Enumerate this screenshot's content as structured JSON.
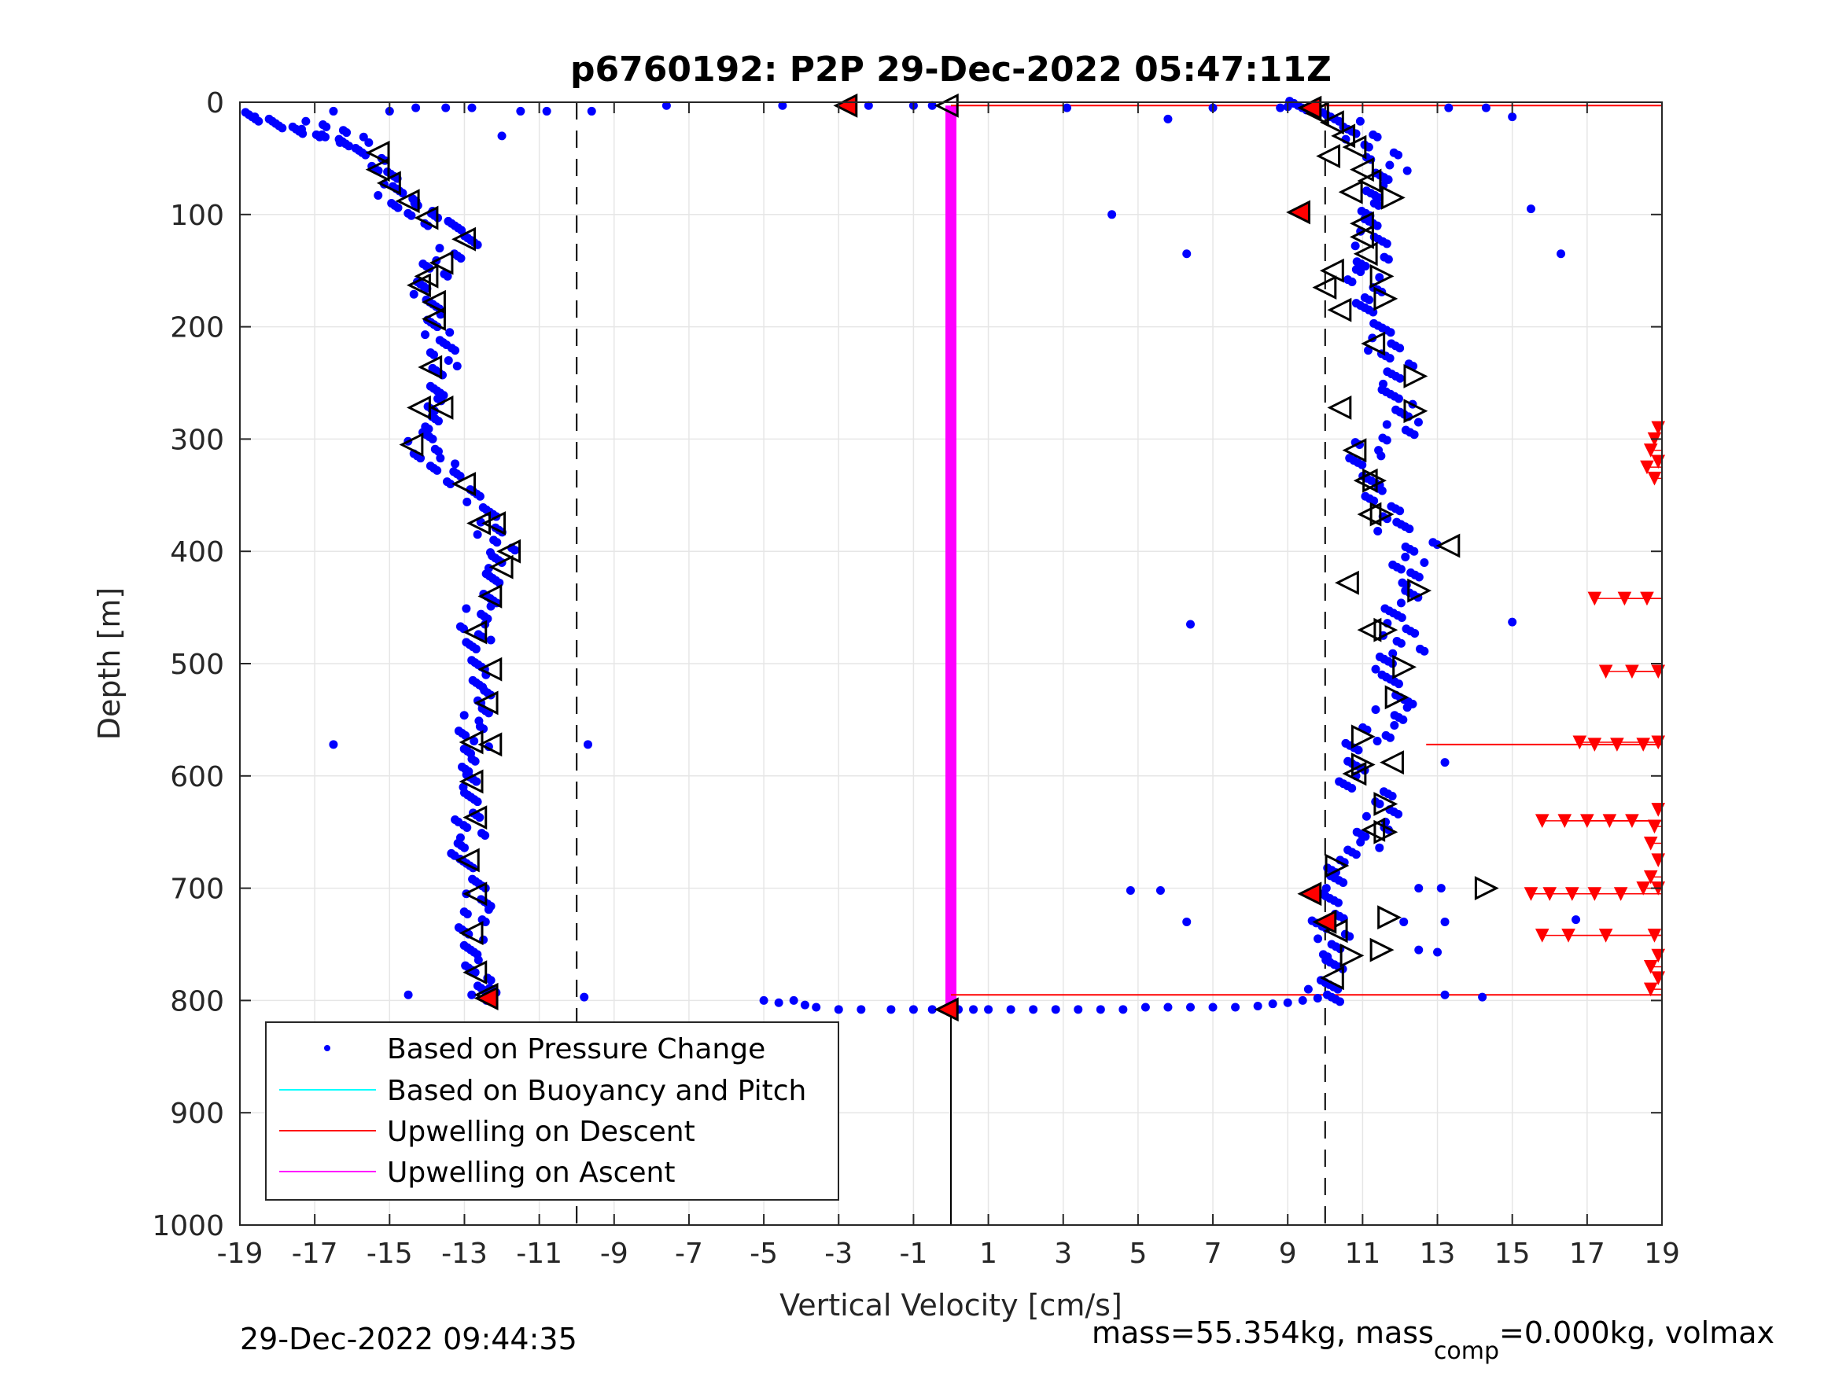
{
  "chart_data": {
    "type": "scatter",
    "title": "p6760192: P2P 29-Dec-2022 05:47:11Z",
    "xlabel": "Vertical Velocity [cm/s]",
    "ylabel": "Depth [m]",
    "xlim": [
      -19,
      19
    ],
    "ylim": [
      0,
      1000
    ],
    "y_reversed": true,
    "grid": true,
    "xticks": [
      "-19",
      "-17",
      "-15",
      "-13",
      "-11",
      "-9",
      "-7",
      "-5",
      "-3",
      "-1",
      "1",
      "3",
      "5",
      "7",
      "9",
      "11",
      "13",
      "15",
      "17",
      "19"
    ],
    "yticks": [
      "0",
      "100",
      "200",
      "300",
      "400",
      "500",
      "600",
      "700",
      "800",
      "900",
      "1000"
    ],
    "legend_position": "bottom-left",
    "legend": [
      {
        "label": "Based on Pressure Change",
        "color": "#0000ff",
        "style": "dot"
      },
      {
        "label": "Based on Buoyancy and Pitch",
        "color": "#00ffff",
        "style": "line"
      },
      {
        "label": "Upwelling on Descent",
        "color": "#ff0000",
        "style": "line"
      },
      {
        "label": "Upwelling on Ascent",
        "color": "#ff00ff",
        "style": "line"
      }
    ],
    "reference_lines": {
      "dashed_x": [
        -10,
        10
      ],
      "solid_x_from_depth_800": 0
    },
    "descent_profile": {
      "color": "#0000ff",
      "points": [
        [
          -18.5,
          15
        ],
        [
          -18.0,
          18
        ],
        [
          -17.5,
          22
        ],
        [
          -17.0,
          26
        ],
        [
          -16.5,
          30
        ],
        [
          -16.0,
          35
        ],
        [
          -15.6,
          42
        ],
        [
          -15.3,
          55
        ],
        [
          -15.1,
          68
        ],
        [
          -15.0,
          80
        ],
        [
          -14.6,
          88
        ],
        [
          -14.2,
          96
        ],
        [
          -13.8,
          104
        ],
        [
          -13.3,
          112
        ],
        [
          -13.0,
          122
        ],
        [
          -13.4,
          135
        ],
        [
          -13.8,
          150
        ],
        [
          -14.0,
          165
        ],
        [
          -13.8,
          180
        ],
        [
          -13.9,
          195
        ],
        [
          -13.7,
          210
        ],
        [
          -13.6,
          225
        ],
        [
          -13.5,
          240
        ],
        [
          -13.6,
          255
        ],
        [
          -13.8,
          270
        ],
        [
          -14.0,
          285
        ],
        [
          -14.2,
          300
        ],
        [
          -14.0,
          312
        ],
        [
          -13.6,
          322
        ],
        [
          -13.2,
          335
        ],
        [
          -12.8,
          350
        ],
        [
          -12.5,
          365
        ],
        [
          -12.3,
          380
        ],
        [
          -12.0,
          395
        ],
        [
          -12.0,
          410
        ],
        [
          -12.2,
          425
        ],
        [
          -12.4,
          440
        ],
        [
          -12.6,
          455
        ],
        [
          -12.8,
          470
        ],
        [
          -12.6,
          485
        ],
        [
          -12.5,
          500
        ],
        [
          -12.6,
          515
        ],
        [
          -12.6,
          530
        ],
        [
          -12.7,
          545
        ],
        [
          -12.8,
          560
        ],
        [
          -12.7,
          575
        ],
        [
          -12.8,
          590
        ],
        [
          -12.9,
          605
        ],
        [
          -13.0,
          620
        ],
        [
          -12.9,
          635
        ],
        [
          -12.8,
          650
        ],
        [
          -13.0,
          665
        ],
        [
          -12.9,
          680
        ],
        [
          -12.7,
          695
        ],
        [
          -12.6,
          710
        ],
        [
          -12.7,
          725
        ],
        [
          -12.8,
          740
        ],
        [
          -12.7,
          755
        ],
        [
          -12.8,
          770
        ],
        [
          -12.6,
          785
        ],
        [
          -12.5,
          795
        ]
      ],
      "outliers": [
        [
          -16.5,
          572
        ],
        [
          -9.7,
          572
        ],
        [
          -14.5,
          795
        ],
        [
          -9.8,
          797
        ],
        [
          -12.0,
          30
        ],
        [
          -11.5,
          8
        ],
        [
          -10.8,
          8
        ],
        [
          -9.6,
          8
        ],
        [
          -13.5,
          5
        ],
        [
          -14.3,
          5
        ]
      ]
    },
    "ascent_profile": {
      "color": "#0000ff",
      "points": [
        [
          9.5,
          5
        ],
        [
          10.2,
          12
        ],
        [
          10.6,
          22
        ],
        [
          11.0,
          35
        ],
        [
          11.5,
          50
        ],
        [
          11.8,
          65
        ],
        [
          11.5,
          80
        ],
        [
          11.2,
          95
        ],
        [
          11.0,
          110
        ],
        [
          11.2,
          125
        ],
        [
          11.3,
          140
        ],
        [
          11.0,
          155
        ],
        [
          11.4,
          170
        ],
        [
          11.0,
          185
        ],
        [
          11.3,
          200
        ],
        [
          11.6,
          215
        ],
        [
          11.9,
          230
        ],
        [
          12.0,
          245
        ],
        [
          11.8,
          260
        ],
        [
          12.0,
          275
        ],
        [
          12.1,
          290
        ],
        [
          11.2,
          305
        ],
        [
          11.1,
          320
        ],
        [
          11.4,
          335
        ],
        [
          11.3,
          350
        ],
        [
          11.6,
          365
        ],
        [
          11.8,
          380
        ],
        [
          12.6,
          395
        ],
        [
          12.2,
          410
        ],
        [
          12.4,
          425
        ],
        [
          12.2,
          440
        ],
        [
          11.6,
          455
        ],
        [
          12.0,
          470
        ],
        [
          12.2,
          485
        ],
        [
          11.8,
          500
        ],
        [
          11.8,
          515
        ],
        [
          12.0,
          530
        ],
        [
          11.8,
          545
        ],
        [
          11.4,
          560
        ],
        [
          11.0,
          575
        ],
        [
          11.0,
          590
        ],
        [
          10.6,
          605
        ],
        [
          11.4,
          620
        ],
        [
          11.5,
          635
        ],
        [
          11.3,
          650
        ],
        [
          11.0,
          665
        ],
        [
          10.4,
          680
        ],
        [
          10.2,
          695
        ],
        [
          9.9,
          710
        ],
        [
          10.1,
          725
        ],
        [
          10.2,
          740
        ],
        [
          10.4,
          755
        ],
        [
          10.3,
          770
        ],
        [
          10.0,
          785
        ],
        [
          10.0,
          795
        ]
      ],
      "outliers": [
        [
          4.3,
          100
        ],
        [
          6.3,
          135
        ],
        [
          15.5,
          95
        ],
        [
          16.3,
          135
        ],
        [
          5.8,
          15
        ],
        [
          3.1,
          5
        ],
        [
          6.4,
          465
        ],
        [
          15.0,
          463
        ],
        [
          13.2,
          588
        ],
        [
          4.8,
          702
        ],
        [
          5.6,
          702
        ],
        [
          6.3,
          730
        ],
        [
          16.7,
          728
        ],
        [
          13.2,
          795
        ],
        [
          14.2,
          797
        ],
        [
          12.5,
          755
        ],
        [
          13.0,
          757
        ],
        [
          12.1,
          730
        ],
        [
          13.2,
          730
        ],
        [
          12.5,
          700
        ],
        [
          13.1,
          700
        ],
        [
          14.3,
          5
        ],
        [
          15.0,
          13
        ],
        [
          13.3,
          5
        ],
        [
          7.0,
          5
        ]
      ]
    },
    "surface_points": [
      [
        -18.6,
        13
      ],
      [
        -16.5,
        8
      ],
      [
        -15.0,
        8
      ],
      [
        -12.8,
        5
      ],
      [
        -7.6,
        3
      ],
      [
        -4.5,
        3
      ],
      [
        -2.2,
        3
      ],
      [
        -1.0,
        3
      ],
      [
        -0.5,
        3
      ],
      [
        8.8,
        5
      ],
      [
        9.0,
        4
      ]
    ],
    "bottom_points": [
      [
        -5.0,
        800
      ],
      [
        -4.6,
        802
      ],
      [
        -4.2,
        800
      ],
      [
        -3.9,
        804
      ],
      [
        -3.6,
        806
      ],
      [
        -3.0,
        808
      ],
      [
        -2.4,
        808
      ],
      [
        -1.6,
        808
      ],
      [
        -1.0,
        808
      ],
      [
        -0.5,
        808
      ],
      [
        0.2,
        808
      ],
      [
        0.6,
        808
      ],
      [
        1.0,
        808
      ],
      [
        1.6,
        808
      ],
      [
        2.2,
        808
      ],
      [
        2.8,
        808
      ],
      [
        3.4,
        808
      ],
      [
        4.0,
        808
      ],
      [
        4.6,
        808
      ],
      [
        5.2,
        806
      ],
      [
        5.8,
        806
      ],
      [
        6.4,
        806
      ],
      [
        7.0,
        806
      ],
      [
        7.6,
        806
      ],
      [
        8.2,
        805
      ],
      [
        8.6,
        803
      ],
      [
        9.0,
        802
      ],
      [
        9.4,
        800
      ],
      [
        9.8,
        798
      ]
    ],
    "triangles_left_descent": [
      [
        -15.3,
        45
      ],
      [
        -15.3,
        60
      ],
      [
        -15.0,
        72
      ],
      [
        -14.5,
        88
      ],
      [
        -14.0,
        103
      ],
      [
        -13.0,
        122
      ],
      [
        -13.6,
        143
      ],
      [
        -14.0,
        155
      ],
      [
        -14.2,
        163
      ],
      [
        -13.8,
        178
      ],
      [
        -13.8,
        193
      ],
      [
        -13.9,
        236
      ],
      [
        -14.2,
        272
      ],
      [
        -13.6,
        272
      ],
      [
        -14.4,
        305
      ],
      [
        -13.0,
        340
      ],
      [
        -12.6,
        375
      ],
      [
        -12.2,
        375
      ],
      [
        -11.8,
        400
      ],
      [
        -12.0,
        414
      ],
      [
        -12.3,
        440
      ],
      [
        -12.7,
        472
      ],
      [
        -12.3,
        505
      ],
      [
        -12.4,
        535
      ],
      [
        -12.8,
        570
      ],
      [
        -12.3,
        572
      ],
      [
        -12.8,
        605
      ],
      [
        -12.7,
        637
      ],
      [
        -12.9,
        675
      ],
      [
        -12.7,
        705
      ],
      [
        -12.8,
        740
      ],
      [
        -12.7,
        775
      ],
      [
        -12.4,
        795
      ],
      [
        9.8,
        10
      ],
      [
        10.2,
        18
      ],
      [
        10.5,
        30
      ],
      [
        10.8,
        40
      ],
      [
        10.1,
        48
      ],
      [
        11.0,
        60
      ],
      [
        11.2,
        70
      ],
      [
        10.7,
        80
      ],
      [
        11.0,
        108
      ],
      [
        11.0,
        120
      ],
      [
        11.1,
        135
      ],
      [
        10.2,
        150
      ],
      [
        10.0,
        165
      ],
      [
        10.4,
        185
      ],
      [
        11.3,
        215
      ],
      [
        10.4,
        272
      ],
      [
        10.8,
        310
      ],
      [
        11.1,
        337
      ],
      [
        11.2,
        367
      ],
      [
        13.3,
        395
      ],
      [
        10.6,
        428
      ],
      [
        11.2,
        470
      ],
      [
        11.8,
        588
      ],
      [
        10.8,
        598
      ],
      [
        11.3,
        648
      ],
      [
        10.3,
        738
      ],
      [
        10.2,
        780
      ],
      [
        -0.1,
        3
      ]
    ],
    "triangles_right_ascent": [
      [
        11.8,
        85
      ],
      [
        11.5,
        155
      ],
      [
        11.6,
        175
      ],
      [
        12.4,
        244
      ],
      [
        12.4,
        275
      ],
      [
        11.3,
        337
      ],
      [
        11.5,
        367
      ],
      [
        12.5,
        435
      ],
      [
        11.6,
        470
      ],
      [
        12.1,
        503
      ],
      [
        11.9,
        530
      ],
      [
        11.0,
        565
      ],
      [
        11.0,
        590
      ],
      [
        11.6,
        625
      ],
      [
        11.6,
        650
      ],
      [
        10.3,
        680
      ],
      [
        11.7,
        726
      ],
      [
        11.5,
        755
      ],
      [
        14.3,
        700
      ],
      [
        10.7,
        760
      ]
    ],
    "triangles_red_fill": [
      [
        -2.8,
        3
      ],
      [
        9.6,
        5
      ],
      [
        9.3,
        98
      ],
      [
        9.6,
        705
      ],
      [
        10.0,
        730
      ],
      [
        -12.4,
        798
      ],
      [
        -0.1,
        808
      ]
    ],
    "upwelling_descent_lines": [
      [
        0.0,
        3
      ],
      [
        0.0,
        795
      ],
      [
        12.7,
        572
      ]
    ],
    "upwelling_descent_arrows": [
      [
        18.9,
        290
      ],
      [
        18.8,
        300
      ],
      [
        18.7,
        310
      ],
      [
        18.9,
        320
      ],
      [
        18.6,
        325
      ],
      [
        18.8,
        335
      ],
      [
        17.2,
        442
      ],
      [
        18.0,
        442
      ],
      [
        18.6,
        442
      ],
      [
        17.5,
        507
      ],
      [
        18.2,
        507
      ],
      [
        18.9,
        507
      ],
      [
        16.8,
        570
      ],
      [
        17.2,
        572
      ],
      [
        17.8,
        572
      ],
      [
        18.5,
        572
      ],
      [
        18.9,
        570
      ],
      [
        15.8,
        640
      ],
      [
        16.4,
        640
      ],
      [
        17.0,
        640
      ],
      [
        17.6,
        640
      ],
      [
        18.2,
        640
      ],
      [
        18.9,
        630
      ],
      [
        18.8,
        645
      ],
      [
        18.7,
        660
      ],
      [
        18.9,
        675
      ],
      [
        18.7,
        690
      ],
      [
        18.9,
        700
      ],
      [
        15.5,
        705
      ],
      [
        16.0,
        705
      ],
      [
        16.6,
        705
      ],
      [
        17.2,
        705
      ],
      [
        17.9,
        705
      ],
      [
        18.5,
        700
      ],
      [
        15.8,
        742
      ],
      [
        16.5,
        742
      ],
      [
        17.5,
        742
      ],
      [
        18.8,
        742
      ],
      [
        18.9,
        760
      ],
      [
        18.7,
        770
      ],
      [
        18.9,
        780
      ],
      [
        18.7,
        790
      ]
    ],
    "upwelling_ascent_segment": {
      "x": 0.0,
      "depth_from": 3,
      "depth_to": 808,
      "color": "#ff00ff"
    }
  },
  "footer": {
    "timestamp": "29-Dec-2022 09:44:35",
    "mass_prefix": "mass=55.354kg, mass",
    "mass_sub": "comp",
    "mass_suffix": "=0.000kg, volmax"
  }
}
